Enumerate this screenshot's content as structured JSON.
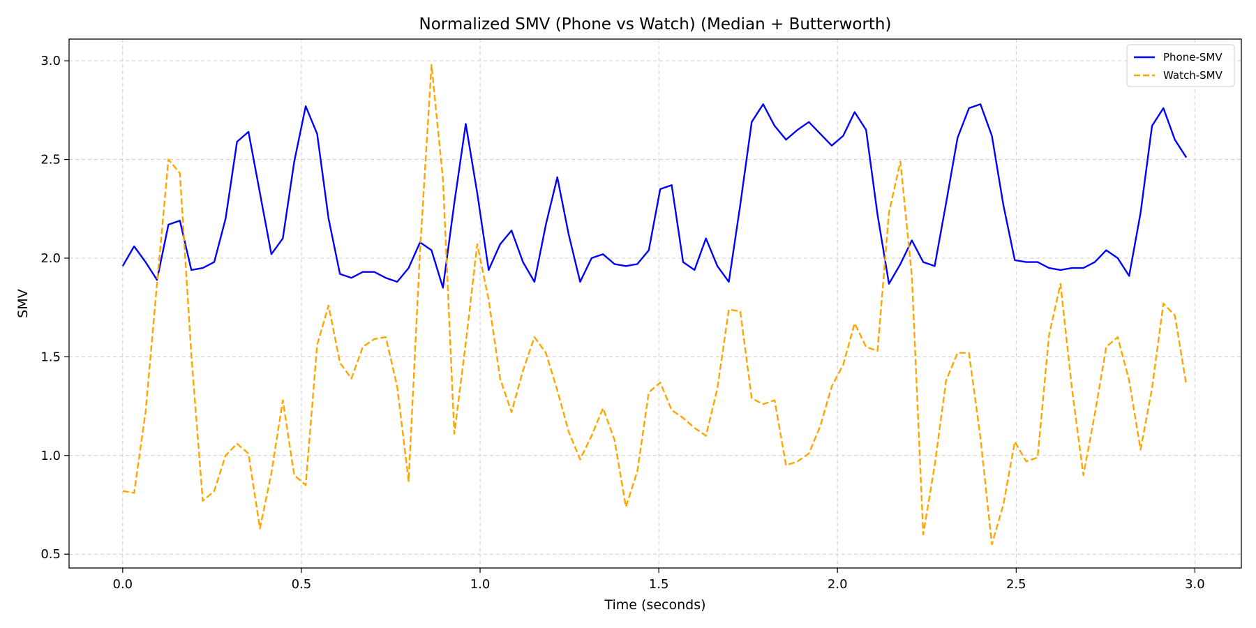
{
  "chart_data": {
    "type": "line",
    "title": "Normalized SMV (Phone vs Watch) (Median + Butterworth)",
    "xlabel": "Time (seconds)",
    "ylabel": "SMV",
    "xlim": [
      -0.15,
      3.13
    ],
    "ylim": [
      0.43,
      3.11
    ],
    "xticks": [
      0.0,
      0.5,
      1.0,
      1.5,
      2.0,
      2.5,
      3.0
    ],
    "xtick_labels": [
      "0.0",
      "0.5",
      "1.0",
      "1.5",
      "2.0",
      "2.5",
      "3.0"
    ],
    "yticks": [
      0.5,
      1.0,
      1.5,
      2.0,
      2.5,
      3.0
    ],
    "ytick_labels": [
      "0.5",
      "1.0",
      "1.5",
      "2.0",
      "2.5",
      "3.0"
    ],
    "grid": true,
    "legend_position": "top-right",
    "x": [
      0.0,
      0.032,
      0.064,
      0.096,
      0.128,
      0.16,
      0.192,
      0.224,
      0.256,
      0.288,
      0.32,
      0.352,
      0.384,
      0.416,
      0.448,
      0.48,
      0.512,
      0.544,
      0.576,
      0.608,
      0.64,
      0.672,
      0.704,
      0.736,
      0.768,
      0.8,
      0.832,
      0.864,
      0.896,
      0.928,
      0.96,
      0.992,
      1.024,
      1.056,
      1.088,
      1.12,
      1.152,
      1.184,
      1.216,
      1.248,
      1.28,
      1.312,
      1.344,
      1.376,
      1.408,
      1.44,
      1.472,
      1.504,
      1.536,
      1.568,
      1.6,
      1.632,
      1.664,
      1.696,
      1.728,
      1.76,
      1.792,
      1.824,
      1.856,
      1.888,
      1.92,
      1.952,
      1.984,
      2.016,
      2.048,
      2.08,
      2.112,
      2.144,
      2.176,
      2.208,
      2.24,
      2.272,
      2.304,
      2.336,
      2.368,
      2.4,
      2.432,
      2.464,
      2.496,
      2.528,
      2.56,
      2.592,
      2.624,
      2.656,
      2.688,
      2.72,
      2.752,
      2.784,
      2.816,
      2.848,
      2.88,
      2.912,
      2.944,
      2.976
    ],
    "series": [
      {
        "name": "Phone-SMV",
        "color": "#0000ff",
        "style": "solid",
        "values": [
          1.96,
          2.06,
          1.98,
          1.89,
          2.17,
          2.19,
          1.94,
          1.95,
          1.98,
          2.2,
          2.59,
          2.64,
          2.33,
          2.02,
          2.1,
          2.49,
          2.77,
          2.63,
          2.2,
          1.92,
          1.9,
          1.93,
          1.93,
          1.9,
          1.88,
          1.95,
          2.08,
          2.04,
          1.85,
          2.28,
          2.68,
          2.33,
          1.94,
          2.07,
          2.14,
          1.98,
          1.88,
          2.17,
          2.41,
          2.12,
          1.88,
          2.0,
          2.02,
          1.97,
          1.96,
          1.97,
          2.04,
          2.35,
          2.37,
          1.98,
          1.94,
          2.1,
          1.96,
          1.88,
          2.27,
          2.69,
          2.78,
          2.67,
          2.6,
          2.65,
          2.69,
          2.63,
          2.57,
          2.62,
          2.74,
          2.65,
          2.22,
          1.87,
          1.97,
          2.09,
          1.98,
          1.96,
          2.28,
          2.61,
          2.76,
          2.78,
          2.62,
          2.27,
          1.99,
          1.98,
          1.98,
          1.95,
          1.94,
          1.95,
          1.95,
          1.98,
          2.04,
          2.0,
          1.91,
          2.23,
          2.67,
          2.76,
          2.6,
          2.51
        ]
      },
      {
        "name": "Watch-SMV",
        "color": "#ffa500",
        "style": "dashed",
        "values": [
          0.82,
          0.81,
          1.22,
          1.87,
          2.5,
          2.43,
          1.51,
          0.77,
          0.82,
          1.0,
          1.06,
          1.01,
          0.63,
          0.91,
          1.28,
          0.9,
          0.85,
          1.56,
          1.76,
          1.47,
          1.39,
          1.55,
          1.59,
          1.6,
          1.35,
          0.87,
          2.04,
          2.98,
          2.4,
          1.11,
          1.57,
          2.07,
          1.79,
          1.39,
          1.22,
          1.43,
          1.6,
          1.52,
          1.33,
          1.12,
          0.98,
          1.1,
          1.24,
          1.08,
          0.74,
          0.92,
          1.32,
          1.37,
          1.23,
          1.19,
          1.14,
          1.1,
          1.34,
          1.74,
          1.73,
          1.29,
          1.26,
          1.28,
          0.95,
          0.97,
          1.01,
          1.15,
          1.35,
          1.46,
          1.67,
          1.55,
          1.53,
          2.23,
          2.49,
          1.91,
          0.6,
          0.95,
          1.38,
          1.52,
          1.52,
          1.09,
          0.55,
          0.75,
          1.07,
          0.97,
          0.99,
          1.61,
          1.87,
          1.34,
          0.9,
          1.21,
          1.55,
          1.6,
          1.38,
          1.03,
          1.34,
          1.77,
          1.71,
          1.36
        ]
      }
    ]
  }
}
